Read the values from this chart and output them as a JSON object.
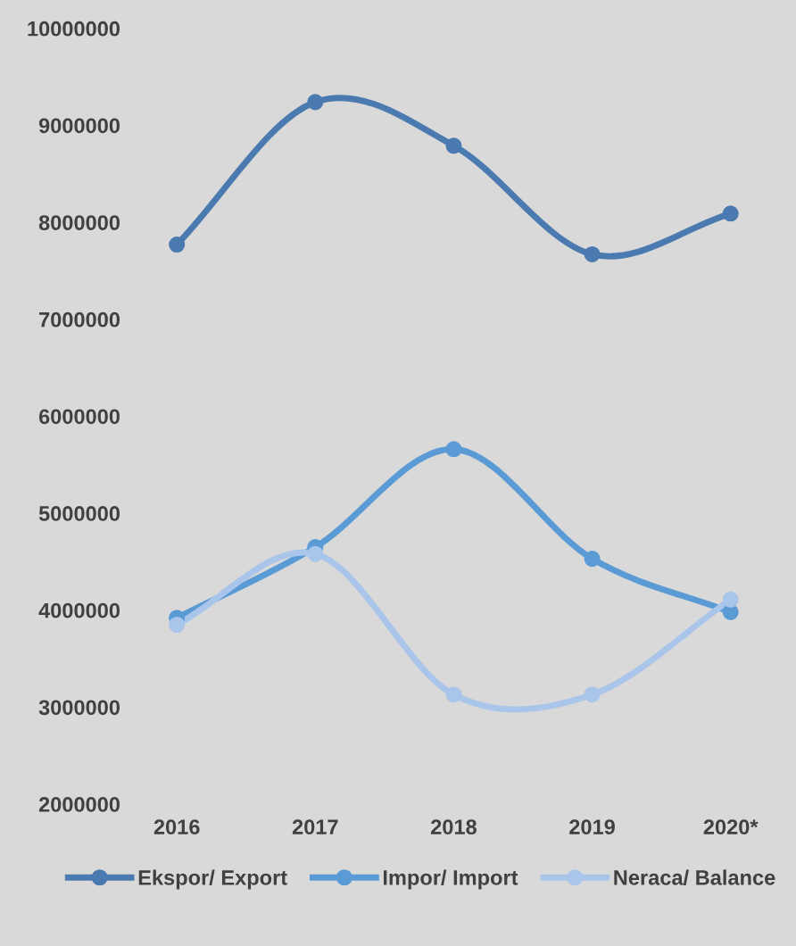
{
  "chart_data": {
    "type": "line",
    "categories": [
      "2016",
      "2017",
      "2018",
      "2019",
      "2020*"
    ],
    "series": [
      {
        "name": "Ekspor/ Export",
        "color": "#4a7ab0",
        "values": [
          7770000,
          9240000,
          8790000,
          7670000,
          8090000
        ]
      },
      {
        "name": "Impor/ Import",
        "color": "#5b9bd5",
        "values": [
          3920000,
          4650000,
          5660000,
          4530000,
          3980000
        ]
      },
      {
        "name": "Neraca/ Balance",
        "color": "#a9c5ea",
        "values": [
          3850000,
          4580000,
          3130000,
          3130000,
          4110000
        ]
      }
    ],
    "ylim": [
      2000000,
      10000000
    ],
    "yticks": [
      2000000,
      3000000,
      4000000,
      5000000,
      6000000,
      7000000,
      8000000,
      9000000,
      10000000
    ],
    "grid": false,
    "legend": "bottom",
    "marker": "circle",
    "line_style": "solid"
  }
}
